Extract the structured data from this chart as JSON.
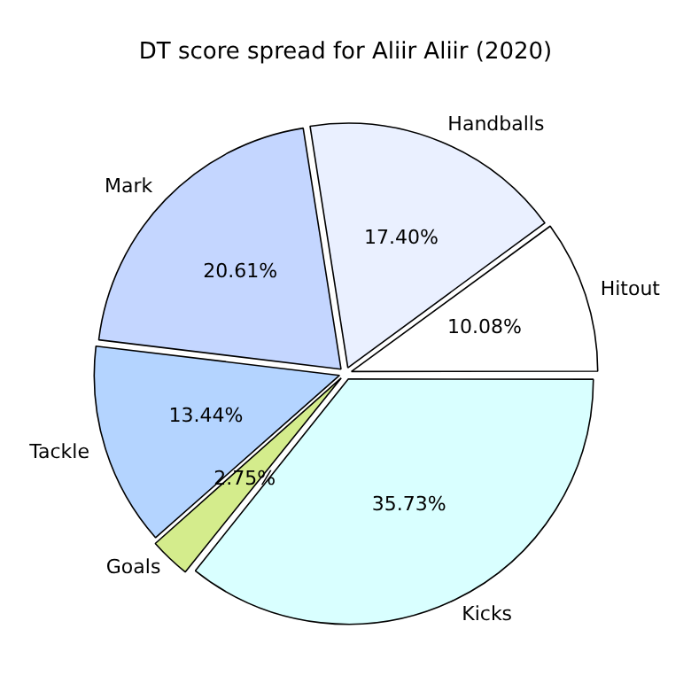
{
  "chart_data": {
    "type": "pie",
    "title": "DT score spread for Aliir Aliir (2020)",
    "categories": [
      "Kicks",
      "Goals",
      "Tackle",
      "Mark",
      "Handballs",
      "Hitout"
    ],
    "values": [
      35.73,
      2.75,
      13.44,
      20.61,
      17.4,
      10.08
    ],
    "colors": [
      "#d9ffff",
      "#d4ec8c",
      "#b4d4ff",
      "#c4d6ff",
      "#eaf0ff",
      "#ffffff"
    ],
    "value_labels": [
      "35.73%",
      "2.75%",
      "13.44%",
      "20.61%",
      "17.40%",
      "10.08%"
    ],
    "legend": false
  }
}
